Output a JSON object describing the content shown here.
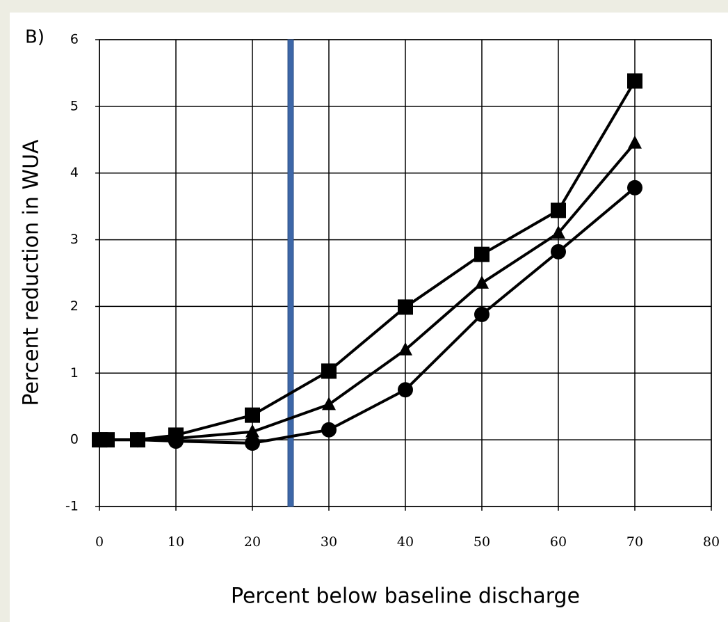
{
  "chart_data": {
    "type": "line",
    "panel_label": "B)",
    "xlabel": "Percent below baseline discharge",
    "ylabel": "Percent reduction in WUA",
    "x": [
      0,
      1,
      5,
      10,
      20,
      30,
      40,
      50,
      60,
      70
    ],
    "series": [
      {
        "color": "#000000",
        "marker": "square",
        "values": [
          0,
          0,
          0,
          0.07,
          0.37,
          1.03,
          1.99,
          2.78,
          3.44,
          5.38
        ]
      },
      {
        "color": "#000000",
        "marker": "triangle",
        "values": [
          0,
          0,
          0,
          0.02,
          0.12,
          0.53,
          1.35,
          2.35,
          3.1,
          4.45
        ]
      },
      {
        "color": "#000000",
        "marker": "circle",
        "values": [
          0,
          0,
          0,
          -0.02,
          -0.05,
          0.15,
          0.75,
          1.88,
          2.82,
          3.78
        ]
      }
    ],
    "vline": 25,
    "vline_color": "#3d67a8",
    "xlim": [
      0,
      80
    ],
    "xticks": [
      0,
      10,
      20,
      30,
      40,
      50,
      60,
      70,
      80
    ],
    "ylim": [
      -1,
      6
    ],
    "yticks": [
      -1,
      0,
      1,
      2,
      3,
      4,
      5,
      6
    ],
    "grid": true
  }
}
